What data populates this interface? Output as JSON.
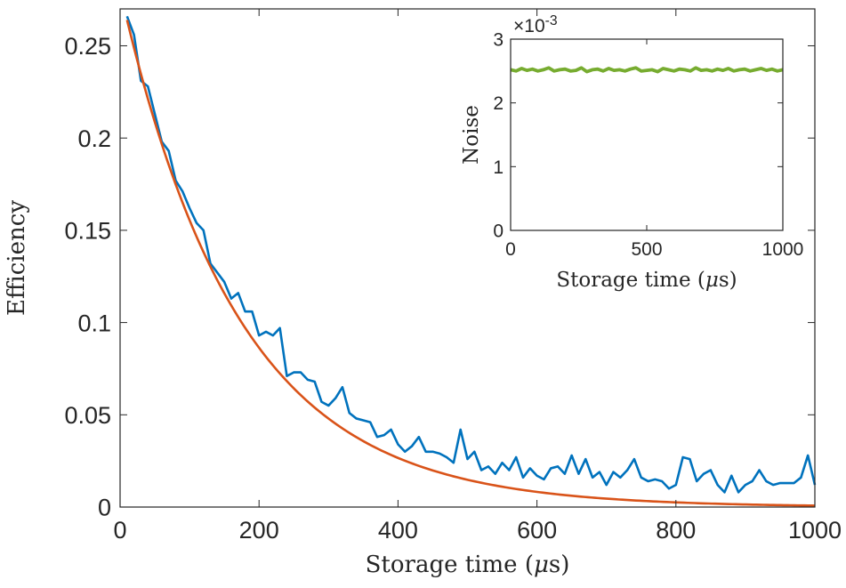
{
  "chart_data": [
    {
      "type": "line",
      "xlabel": "Storage time (μs)",
      "ylabel": "Efficiency",
      "xlim": [
        0,
        1000
      ],
      "ylim": [
        0,
        0.27
      ],
      "xticks": [
        0,
        200,
        400,
        600,
        800,
        1000
      ],
      "xtick_labels": [
        "0",
        "200",
        "400",
        "600",
        "800",
        "1000"
      ],
      "yticks": [
        0,
        0.05,
        0.1,
        0.15,
        0.2,
        0.25
      ],
      "ytick_labels": [
        "0",
        "0.05",
        "0.1",
        "0.15",
        "0.2",
        "0.25"
      ],
      "grid": false,
      "series": [
        {
          "color": "#0072BD",
          "x": [
            10,
            20,
            30,
            40,
            50,
            60,
            70,
            80,
            90,
            100,
            110,
            120,
            130,
            140,
            150,
            160,
            170,
            180,
            190,
            200,
            210,
            220,
            230,
            240,
            250,
            260,
            270,
            280,
            290,
            300,
            310,
            320,
            330,
            340,
            350,
            360,
            370,
            380,
            390,
            400,
            410,
            420,
            430,
            440,
            450,
            460,
            470,
            480,
            490,
            500,
            510,
            520,
            530,
            540,
            550,
            560,
            570,
            580,
            590,
            600,
            610,
            620,
            630,
            640,
            650,
            660,
            670,
            680,
            690,
            700,
            710,
            720,
            730,
            740,
            750,
            760,
            770,
            780,
            790,
            800,
            810,
            820,
            830,
            840,
            850,
            860,
            870,
            880,
            890,
            900,
            910,
            920,
            930,
            940,
            950,
            960,
            970,
            980,
            990,
            1000
          ],
          "y": [
            0.266,
            0.256,
            0.231,
            0.228,
            0.213,
            0.198,
            0.193,
            0.177,
            0.171,
            0.162,
            0.154,
            0.15,
            0.132,
            0.127,
            0.122,
            0.113,
            0.116,
            0.106,
            0.106,
            0.093,
            0.095,
            0.093,
            0.097,
            0.071,
            0.073,
            0.073,
            0.069,
            0.068,
            0.057,
            0.055,
            0.059,
            0.065,
            0.051,
            0.048,
            0.047,
            0.046,
            0.038,
            0.039,
            0.042,
            0.034,
            0.03,
            0.033,
            0.038,
            0.03,
            0.03,
            0.029,
            0.027,
            0.024,
            0.042,
            0.026,
            0.03,
            0.02,
            0.022,
            0.018,
            0.024,
            0.02,
            0.027,
            0.016,
            0.021,
            0.017,
            0.015,
            0.021,
            0.022,
            0.018,
            0.028,
            0.018,
            0.026,
            0.016,
            0.019,
            0.012,
            0.019,
            0.016,
            0.02,
            0.026,
            0.016,
            0.014,
            0.015,
            0.014,
            0.01,
            0.012,
            0.027,
            0.026,
            0.014,
            0.018,
            0.02,
            0.012,
            0.008,
            0.017,
            0.008,
            0.012,
            0.014,
            0.02,
            0.014,
            0.012,
            0.013,
            0.013,
            0.013,
            0.016,
            0.028,
            0.012
          ]
        },
        {
          "color": "#D95319",
          "fit": {
            "amplitude": 0.28,
            "tau_us": 170
          },
          "x": [
            10,
            1000
          ]
        }
      ]
    },
    {
      "type": "line",
      "xlabel": "Storage time (μs)",
      "ylabel": "Noise",
      "exponent_label": "×10",
      "exponent_value": "-3",
      "xlim": [
        0,
        1000
      ],
      "ylim": [
        0,
        3
      ],
      "xticks": [
        0,
        500,
        1000
      ],
      "xtick_labels": [
        "0",
        "500",
        "1000"
      ],
      "yticks": [
        0,
        1,
        2,
        3
      ],
      "ytick_labels": [
        "0",
        "1",
        "2",
        "3"
      ],
      "grid": false,
      "series": [
        {
          "color": "#77AC30",
          "x": [
            0,
            20,
            40,
            60,
            80,
            100,
            120,
            140,
            160,
            180,
            200,
            220,
            240,
            260,
            280,
            300,
            320,
            340,
            360,
            380,
            400,
            420,
            440,
            460,
            480,
            500,
            520,
            540,
            560,
            580,
            600,
            620,
            640,
            660,
            680,
            700,
            720,
            740,
            760,
            780,
            800,
            820,
            840,
            860,
            880,
            900,
            920,
            940,
            960,
            980,
            1000
          ],
          "y": [
            2.52,
            2.5,
            2.54,
            2.51,
            2.53,
            2.5,
            2.52,
            2.55,
            2.5,
            2.52,
            2.53,
            2.5,
            2.51,
            2.55,
            2.49,
            2.52,
            2.53,
            2.5,
            2.54,
            2.51,
            2.52,
            2.5,
            2.53,
            2.55,
            2.5,
            2.51,
            2.52,
            2.49,
            2.54,
            2.52,
            2.5,
            2.53,
            2.52,
            2.5,
            2.55,
            2.51,
            2.52,
            2.5,
            2.53,
            2.51,
            2.54,
            2.5,
            2.52,
            2.53,
            2.5,
            2.52,
            2.54,
            2.51,
            2.53,
            2.5,
            2.52
          ]
        }
      ]
    }
  ]
}
